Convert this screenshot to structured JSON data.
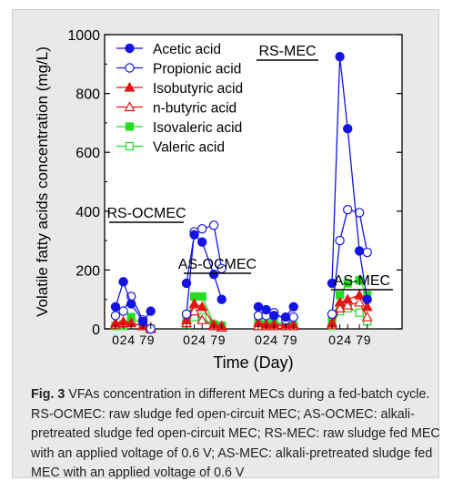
{
  "chart_data": {
    "type": "line",
    "xlabel": "Time (Day)",
    "ylabel": "Volatile fatty acids concentration (mg/L)",
    "ylim": [
      0,
      1000
    ],
    "yticks": [
      0,
      200,
      400,
      600,
      800,
      1000
    ],
    "x_ticks": [
      "0",
      "2",
      "4",
      "7",
      "9"
    ],
    "x_days": [
      0,
      2,
      4,
      7,
      9
    ],
    "legend_position": "top-left",
    "groups": [
      {
        "label": "RS-OCMEC",
        "series": {
          "acetic": [
            75,
            160,
            85,
            25,
            60
          ],
          "propionic": [
            45,
            60,
            110,
            30,
            0
          ],
          "isobutyric": [
            20,
            25,
            20,
            10,
            0
          ],
          "nbutyric": [
            15,
            20,
            20,
            10,
            5
          ],
          "isovaleric": [
            10,
            15,
            40,
            15,
            0
          ],
          "valeric": [
            10,
            10,
            20,
            10,
            0
          ]
        }
      },
      {
        "label": "AS-OCMEC",
        "series": {
          "acetic": [
            155,
            320,
            295,
            185,
            100
          ],
          "propionic": [
            50,
            330,
            340,
            352,
            205
          ],
          "isobutyric": [
            30,
            85,
            75,
            15,
            10
          ],
          "nbutyric": [
            20,
            60,
            30,
            10,
            5
          ],
          "isovaleric": [
            25,
            110,
            110,
            15,
            10
          ],
          "valeric": [
            15,
            40,
            40,
            10,
            10
          ]
        }
      },
      {
        "label": "RS-MEC",
        "series": {
          "acetic": [
            75,
            65,
            45,
            40,
            75
          ],
          "propionic": [
            45,
            45,
            55,
            30,
            40
          ],
          "isobutyric": [
            20,
            15,
            15,
            15,
            15
          ],
          "nbutyric": [
            10,
            10,
            10,
            10,
            10
          ],
          "isovaleric": [
            20,
            15,
            20,
            20,
            10
          ],
          "valeric": [
            10,
            10,
            10,
            10,
            10
          ]
        }
      },
      {
        "label": "AS-MEC",
        "series": {
          "acetic": [
            155,
            925,
            680,
            265,
            100
          ],
          "propionic": [
            50,
            300,
            405,
            395,
            260
          ],
          "isobutyric": [
            20,
            90,
            100,
            115,
            75
          ],
          "nbutyric": [
            15,
            70,
            80,
            90,
            40
          ],
          "isovaleric": [
            25,
            115,
            155,
            165,
            115
          ],
          "valeric": [
            10,
            60,
            70,
            55,
            25
          ]
        }
      }
    ],
    "legend": [
      {
        "key": "acetic",
        "name": "Acetic acid",
        "color": "#1414e6",
        "filled": true,
        "shape": "circle"
      },
      {
        "key": "propionic",
        "name": "Propionic acid",
        "color": "#1414e6",
        "filled": false,
        "shape": "circle"
      },
      {
        "key": "isobutyric",
        "name": "Isobutyric acid",
        "color": "#e61414",
        "filled": true,
        "shape": "triangle"
      },
      {
        "key": "nbutyric",
        "name": "n-butyric acid",
        "color": "#e61414",
        "filled": false,
        "shape": "triangle"
      },
      {
        "key": "isovaleric",
        "name": "Isovaleric acid",
        "color": "#22dd22",
        "filled": true,
        "shape": "square"
      },
      {
        "key": "valeric",
        "name": "Valeric acid",
        "color": "#22dd22",
        "filled": false,
        "shape": "square"
      }
    ]
  },
  "caption": {
    "label": "Fig. 3",
    "text": "VFAs concentration in different MECs during a fed-batch cycle. RS-OCMEC: raw sludge fed open-circuit MEC; AS-OCMEC: alkali-pretreated sludge fed open-circuit MEC; RS-MEC: raw sludge fed MEC with an applied voltage of 0.6 V; AS-MEC: alkali-pretreated sludge fed MEC with an applied voltage of 0.6 V"
  }
}
